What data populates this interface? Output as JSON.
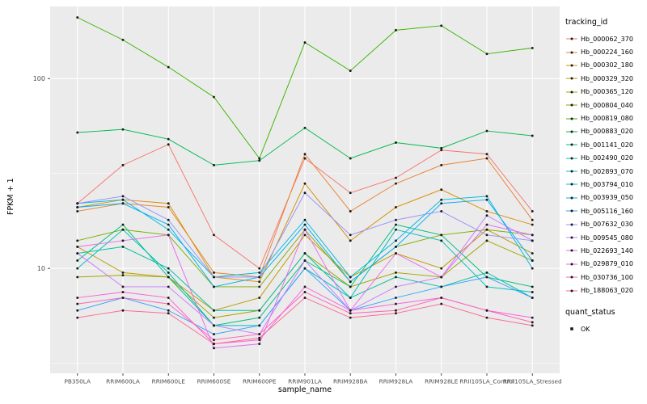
{
  "chart_data": {
    "type": "line",
    "title": "",
    "xlabel": "sample_name",
    "ylabel": "FPKM + 1",
    "y_scale": "log10",
    "ylim": [
      2.8,
      240
    ],
    "yticks": [
      10,
      100
    ],
    "y_minor": [
      3.162,
      31.62
    ],
    "grid": true,
    "legend_position": "right",
    "panel_bg": "#EBEBEB",
    "grid_color": "#FFFFFF",
    "point_color": "#1A1A1A",
    "tick_label_color": "#4D4D4D",
    "categories": [
      "PB350LA",
      "RRIM600LA",
      "RRIM600LE",
      "RRIM600SE",
      "RRIM600PE",
      "RRIM901LA",
      "RRIM928BA",
      "RRIM928LA",
      "RRIM928LE",
      "RRII105LA_Control",
      "RRII105LA_Stressed"
    ],
    "series": [
      {
        "name": "Hb_000062_370",
        "color": "#F8766D",
        "values": [
          22,
          35,
          45,
          15,
          10,
          38,
          25,
          30,
          42,
          40,
          20
        ]
      },
      {
        "name": "Hb_000224_160",
        "color": "#EA8331",
        "values": [
          20,
          22,
          21,
          9.5,
          9,
          40,
          20,
          28,
          35,
          38,
          18
        ]
      },
      {
        "name": "Hb_000302_180",
        "color": "#D89000",
        "values": [
          21,
          23,
          22,
          9,
          8.5,
          28,
          14,
          21,
          26,
          20,
          17
        ]
      },
      {
        "name": "Hb_000329_320",
        "color": "#C09B00",
        "values": [
          13,
          9.5,
          9,
          6,
          7,
          15,
          9,
          12,
          10,
          16,
          12
        ]
      },
      {
        "name": "Hb_000365_120",
        "color": "#A3A500",
        "values": [
          9,
          9.2,
          9,
          5.5,
          6,
          12,
          8,
          9.5,
          9,
          14,
          11
        ]
      },
      {
        "name": "Hb_000804_040",
        "color": "#7CAE00",
        "values": [
          14,
          16,
          15,
          8,
          8,
          16,
          8.5,
          13,
          15,
          16,
          15
        ]
      },
      {
        "name": "Hb_000819_080",
        "color": "#39B600",
        "values": [
          210,
          160,
          115,
          80,
          38,
          155,
          110,
          180,
          190,
          135,
          145
        ]
      },
      {
        "name": "Hb_000883_020",
        "color": "#00BB4E",
        "values": [
          52,
          54,
          48,
          35,
          37,
          55,
          38,
          46,
          43,
          53,
          50
        ]
      },
      {
        "name": "Hb_001141_020",
        "color": "#00BF7D",
        "values": [
          11,
          17,
          9,
          5,
          5.5,
          11,
          8,
          17,
          15,
          9,
          8
        ]
      },
      {
        "name": "Hb_002490_020",
        "color": "#00C1A3",
        "values": [
          12,
          13,
          10,
          6,
          6,
          12,
          7,
          9,
          8,
          9.5,
          7
        ]
      },
      {
        "name": "Hb_002893_070",
        "color": "#00BFC4",
        "values": [
          10,
          16,
          9.5,
          5,
          5,
          10,
          7,
          16,
          14,
          8,
          7.5
        ]
      },
      {
        "name": "Hb_003794_010",
        "color": "#00BAE0",
        "values": [
          22,
          23,
          16,
          9,
          9.5,
          18,
          9,
          14,
          23,
          24,
          10
        ]
      },
      {
        "name": "Hb_003939_050",
        "color": "#00B0F6",
        "values": [
          21,
          22,
          17,
          8,
          9,
          17,
          8.5,
          13,
          22,
          23,
          11
        ]
      },
      {
        "name": "Hb_005116_160",
        "color": "#35A2FF",
        "values": [
          6,
          7,
          6,
          4.5,
          5,
          10,
          6,
          7,
          8,
          9,
          7
        ]
      },
      {
        "name": "Hb_007632_030",
        "color": "#9590FF",
        "values": [
          22,
          24,
          18,
          9,
          9,
          25,
          15,
          18,
          20,
          15,
          14
        ]
      },
      {
        "name": "Hb_009545_080",
        "color": "#C77CFF",
        "values": [
          12,
          8,
          8,
          5,
          4.5,
          11,
          6,
          8,
          9,
          19,
          14
        ]
      },
      {
        "name": "Hb_022693_140",
        "color": "#E76BF3",
        "values": [
          13,
          14,
          15,
          3.8,
          4,
          16,
          6,
          12,
          9,
          17,
          15
        ]
      },
      {
        "name": "Hb_029879_010",
        "color": "#FA62DB",
        "values": [
          7,
          7.5,
          7,
          4,
          4.2,
          8,
          6,
          6.5,
          7,
          6,
          5.5
        ]
      },
      {
        "name": "Hb_030736_100",
        "color": "#FF62BC",
        "values": [
          6.5,
          7,
          6.5,
          4.2,
          4.5,
          7.5,
          5.8,
          6,
          7,
          6,
          5.2
        ]
      },
      {
        "name": "Hb_188063_020",
        "color": "#FF6A98",
        "values": [
          5.5,
          6,
          5.8,
          4,
          4.3,
          7,
          5.5,
          5.8,
          6.5,
          5.5,
          5
        ]
      }
    ]
  },
  "legend": {
    "tracking_title": "tracking_id",
    "quant_title": "quant_status",
    "quant_items": [
      "OK"
    ]
  }
}
